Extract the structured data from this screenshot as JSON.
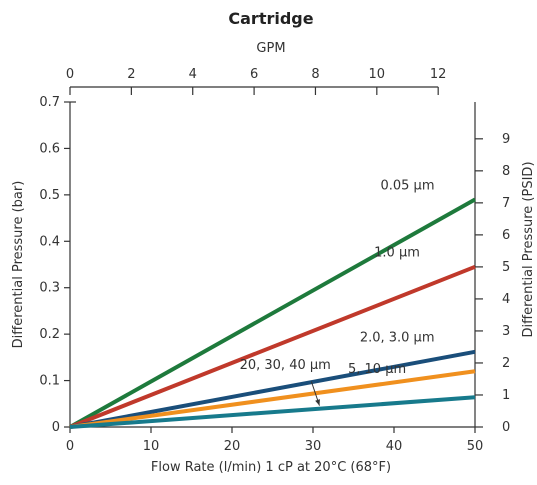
{
  "chart_data": {
    "type": "line",
    "title": "Cartridge",
    "x_axis": {
      "label": "Flow Rate (l/min) 1 cP at 20°C (68°F)",
      "range": [
        0,
        50
      ],
      "ticks": [
        0,
        10,
        20,
        30,
        40,
        50
      ]
    },
    "x2_axis": {
      "label": "GPM",
      "range": [
        0,
        13.2
      ],
      "ticks": [
        0,
        2,
        4,
        6,
        8,
        10,
        12
      ],
      "position": "top"
    },
    "y_axis": {
      "label": "Differential Pressure (bar)",
      "range": [
        0,
        0.7
      ],
      "ticks": [
        0,
        0.1,
        0.2,
        0.3,
        0.4,
        0.5,
        0.6,
        0.7
      ]
    },
    "y2_axis": {
      "label": "Differential Pressure (PSID)",
      "range": [
        0,
        10.15
      ],
      "ticks": [
        0,
        1,
        2,
        3,
        4,
        5,
        6,
        7,
        8,
        9
      ],
      "position": "right"
    },
    "grid": false,
    "series": [
      {
        "name": "0.05 µm",
        "color": "#1e7a3c",
        "x": [
          0,
          50
        ],
        "y": [
          0,
          0.49
        ]
      },
      {
        "name": "1.0 µm",
        "color": "#c0392b",
        "x": [
          0,
          50
        ],
        "y": [
          0,
          0.345
        ]
      },
      {
        "name": "2.0, 3.0 µm",
        "color": "#1a4e7a",
        "x": [
          0,
          50
        ],
        "y": [
          0,
          0.162
        ]
      },
      {
        "name": "5, 10 µm",
        "color": "#f0901e",
        "x": [
          0,
          50
        ],
        "y": [
          0,
          0.12
        ]
      },
      {
        "name": "20, 30, 40 µm",
        "color": "#177a8c",
        "x": [
          0,
          50
        ],
        "y": [
          0,
          0.064
        ]
      }
    ]
  }
}
